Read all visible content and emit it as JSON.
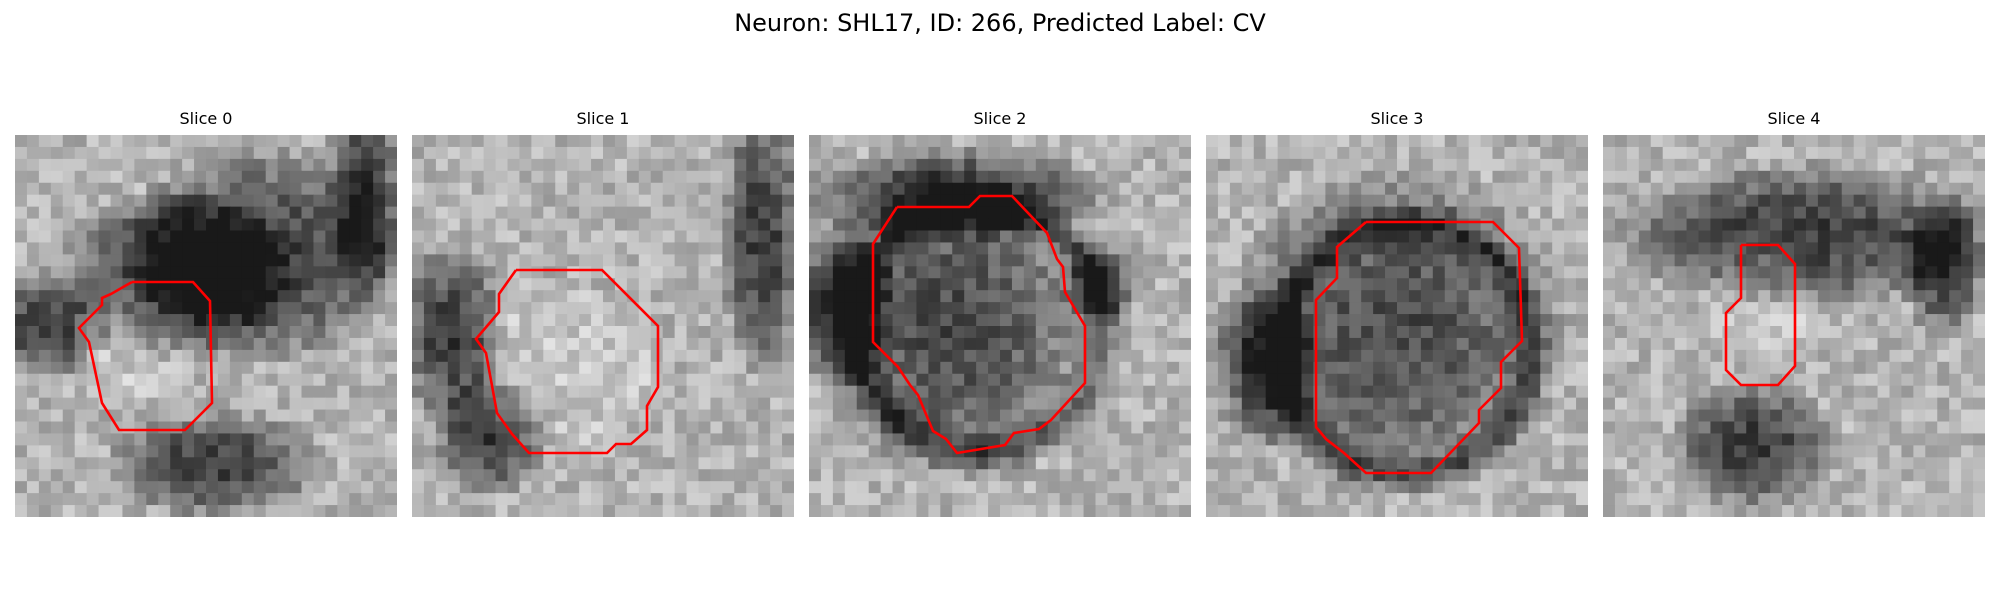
{
  "figure": {
    "title": "Neuron: SHL17, ID: 266, Predicted Label: CV"
  },
  "panels": [
    {
      "title": "Slice 0"
    },
    {
      "title": "Slice 1"
    },
    {
      "title": "Slice 2"
    },
    {
      "title": "Slice 3"
    },
    {
      "title": "Slice 4"
    }
  ],
  "colors": {
    "contour": "#ff0000",
    "background": "#ffffff"
  },
  "image": {
    "colormap": "grayscale",
    "grid_cells": 32,
    "contour_style": "red outline"
  }
}
